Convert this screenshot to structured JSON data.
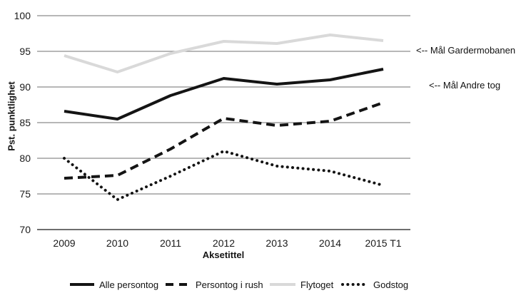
{
  "chart_data": {
    "type": "line",
    "title": "",
    "ylabel": "Pst. punktlighet",
    "xlabel": "Aksetittel",
    "ylim": [
      70,
      100
    ],
    "y_ticks": [
      100,
      95,
      90,
      85,
      80,
      75,
      70
    ],
    "grid": "horizontal",
    "legend_position": "bottom",
    "categories": [
      "2009",
      "2010",
      "2011",
      "2012",
      "2013",
      "2014",
      "2015 T1"
    ],
    "series": [
      {
        "name": "Alle persontog",
        "style": "solid",
        "color": "#141414",
        "values": [
          86.6,
          85.5,
          88.8,
          91.2,
          90.4,
          91.0,
          92.5
        ]
      },
      {
        "name": "Persontog i rush",
        "style": "dashed",
        "color": "#141414",
        "values": [
          77.2,
          77.6,
          81.3,
          85.6,
          84.6,
          85.2,
          87.8
        ]
      },
      {
        "name": "Flytoget",
        "style": "solid",
        "color": "#d9d9d9",
        "values": [
          94.4,
          92.1,
          94.7,
          96.4,
          96.1,
          97.3,
          96.5
        ]
      },
      {
        "name": "Godstog",
        "style": "dotted",
        "color": "#141414",
        "values": [
          80.0,
          74.2,
          77.5,
          81.0,
          78.9,
          78.2,
          76.2
        ]
      }
    ],
    "annotations": [
      {
        "text": "<-- Mål Gardermobanen",
        "target_value": 95
      },
      {
        "text": "<-- Mål Andre tog",
        "target_value": 90
      }
    ],
    "colors": {
      "gridline": "#8c8c8c",
      "axisline": "#595959",
      "flytoget_gray": "#d9d9d9",
      "line_black": "#141414"
    }
  }
}
